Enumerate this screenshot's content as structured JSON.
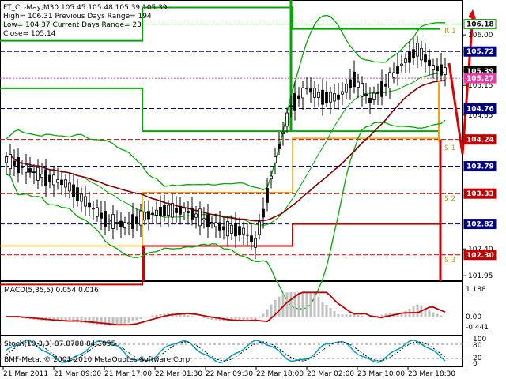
{
  "header": {
    "line1": "FT_CL-May,M30  105.45 105.48 105.39 105.39",
    "line2": "High= 106.31    Previous Days Range= 194",
    "line3": "Low= 104.37     Current Days Range= 23",
    "line4": "Close= 105.14"
  },
  "pivot_labels": {
    "r1": "R 1",
    "s1": "S 1",
    "s2": "S 2",
    "s3": "S 3"
  },
  "price_axis": {
    "plain": [
      "106.00",
      "105.15",
      "104.65",
      "102.40",
      "101.95"
    ],
    "tags": [
      {
        "text": "106.18",
        "bg": "#ffffff",
        "fg": "#000000",
        "border": "#00aa00"
      },
      {
        "text": "105.72",
        "bg": "#000080",
        "fg": "#ffffff"
      },
      {
        "text": "105.39",
        "bg": "#000000",
        "fg": "#ffffff"
      },
      {
        "text": "105.27",
        "bg": "#e040a0",
        "fg": "#ffffff"
      },
      {
        "text": "104.76",
        "bg": "#000080",
        "fg": "#ffffff"
      },
      {
        "text": "104.24",
        "bg": "#c00000",
        "fg": "#ffffff"
      },
      {
        "text": "103.79",
        "bg": "#000080",
        "fg": "#ffffff"
      },
      {
        "text": "103.33",
        "bg": "#c00000",
        "fg": "#ffffff"
      },
      {
        "text": "102.82",
        "bg": "#000080",
        "fg": "#ffffff"
      },
      {
        "text": "102.30",
        "bg": "#c00000",
        "fg": "#ffffff"
      }
    ]
  },
  "macd": {
    "label": "MACD(5,35,5) 0.054 0.016",
    "axis": [
      "1.188",
      "0.00",
      "-0.441"
    ]
  },
  "stoch": {
    "label": "Stoch(10,3,3) 87.8788 84.1055",
    "axis": [
      "100",
      "80",
      "20",
      "0"
    ]
  },
  "watermark": "BMF-Meta, © 2001-2010 MetaQuotes Software Corp.",
  "time_axis": [
    "21 Mar 2011",
    "21 Mar 09:00",
    "21 Mar 17:00",
    "22 Mar 01:30",
    "22 Mar 09:30",
    "22 Mar 18:00",
    "23 Mar 02:00",
    "23 Mar 10:00",
    "23 Mar 18:30"
  ],
  "colors": {
    "up_candle": "#ffffff",
    "down_candle": "#000000",
    "bollinger": "#00aa00",
    "ma": "#800000",
    "macd_hist": "#c0c0c0",
    "macd_signal": "#c00000",
    "stoch_main": "#00a0c0",
    "stoch_signal": "#000000",
    "pivot_green": "#00aa00",
    "pivot_orange": "#ffa000",
    "pivot_red": "#cc0000",
    "level_navy": "#000080"
  }
}
